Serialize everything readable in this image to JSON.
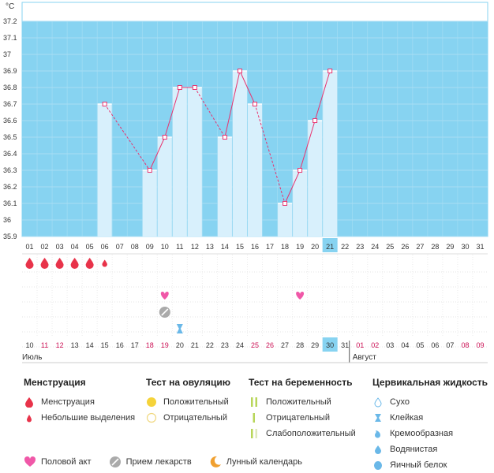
{
  "chart_data": {
    "type": "line",
    "ylabel": "°C",
    "ylim": [
      35.9,
      37.2
    ],
    "y_ticks": [
      "37.2",
      "37.1",
      "37",
      "36.9",
      "36.8",
      "36.7",
      "36.6",
      "36.5",
      "36.4",
      "36.3",
      "36.2",
      "36.1",
      "36",
      "35.9"
    ],
    "days": [
      "01",
      "02",
      "03",
      "04",
      "05",
      "06",
      "07",
      "08",
      "09",
      "10",
      "11",
      "12",
      "13",
      "14",
      "15",
      "16",
      "17",
      "18",
      "19",
      "20",
      "21",
      "22",
      "23",
      "24",
      "25",
      "26",
      "27",
      "28",
      "29",
      "30",
      "31"
    ],
    "highlight_day_index": 20,
    "temperatures": [
      null,
      null,
      null,
      null,
      null,
      36.7,
      null,
      null,
      36.3,
      36.5,
      36.8,
      36.8,
      null,
      36.5,
      36.9,
      36.7,
      null,
      36.1,
      36.3,
      36.6,
      36.9,
      null,
      null,
      null,
      null,
      null,
      null,
      null,
      null,
      null,
      null
    ],
    "menstruation": [
      "heavy",
      "heavy",
      "heavy",
      "heavy",
      "heavy",
      "light",
      null,
      null,
      null,
      null,
      null,
      null,
      null,
      null,
      null,
      null,
      null,
      null,
      null,
      null,
      null,
      null,
      null,
      null,
      null,
      null,
      null,
      null,
      null,
      null,
      null
    ],
    "intercourse_days": [
      9,
      18
    ],
    "medication_days": [
      9
    ],
    "cervical_fluid": [
      {
        "day": 10,
        "type": "sticky"
      }
    ],
    "dates": [
      "10",
      "11",
      "12",
      "13",
      "14",
      "15",
      "16",
      "17",
      "18",
      "19",
      "20",
      "21",
      "22",
      "23",
      "24",
      "25",
      "26",
      "27",
      "28",
      "29",
      "30",
      "31",
      "01",
      "02",
      "03",
      "04",
      "05",
      "06",
      "07",
      "08",
      "09"
    ],
    "weekend_date_indices": [
      1,
      2,
      8,
      9,
      15,
      16,
      22,
      23,
      29,
      30
    ],
    "highlight_date_index": 20,
    "month_labels": [
      {
        "label": "Июль",
        "start": 0
      },
      {
        "label": "Август",
        "start": 22
      }
    ]
  },
  "colors": {
    "plot_bg": "#87d3f1",
    "bar": "#d8f0fc",
    "bar_top": "#ffffff",
    "line": "#e8336f",
    "highlight": "#87d3f1",
    "weekend": "#cc1155",
    "blood": "#e8334a",
    "heart": "#f058a8",
    "ovulation_positive": "#f5d33a",
    "ovulation_negative": "#f0d880",
    "pregnancy_test": "#b8d65a",
    "fluid": "#6ab8e8",
    "moon": "#f0a030",
    "med": "#999999"
  },
  "legend": {
    "menstruation": {
      "title": "Менструация",
      "items": [
        "Менструация",
        "Небольшие выделения"
      ]
    },
    "ovulation": {
      "title": "Тест на овуляцию",
      "items": [
        "Положительный",
        "Отрицательный"
      ]
    },
    "pregnancy": {
      "title": "Тест на беременность",
      "items": [
        "Положительный",
        "Отрицательный",
        "Слабоположительный"
      ]
    },
    "cervical": {
      "title": "Цервикальная жидкость",
      "items": [
        "Сухо",
        "Клейкая",
        "Кремообразная",
        "Водянистая",
        "Яичный белок"
      ]
    },
    "bottom": [
      "Половой акт",
      "Прием лекарств",
      "Лунный календарь"
    ]
  }
}
